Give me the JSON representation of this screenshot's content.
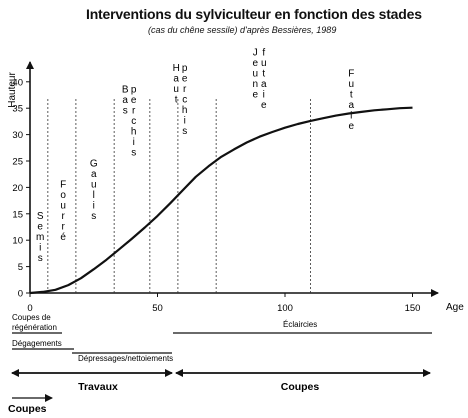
{
  "chart_data": {
    "type": "line",
    "title": "Interventions du sylviculteur en fonction des stades",
    "subtitle": "(cas du chêne sessile) d'après Bessières, 1989",
    "ylabel": "Hauteur",
    "xlabel": "Age",
    "xlim": [
      0,
      160
    ],
    "ylim": [
      0,
      45
    ],
    "xticks": [
      0,
      50,
      100,
      150
    ],
    "yticks": [
      0,
      5,
      10,
      15,
      20,
      25,
      30,
      35,
      40
    ],
    "series": [
      {
        "x": [
          0,
          5,
          10,
          15,
          20,
          25,
          30,
          35,
          40,
          45,
          50,
          55,
          60,
          65,
          70,
          75,
          80,
          85,
          90,
          95,
          100,
          105,
          110,
          115,
          120,
          125,
          130,
          135,
          140,
          145,
          150
        ],
        "values": [
          0,
          0.2,
          0.6,
          1.5,
          2.8,
          4.5,
          6.3,
          8.3,
          10.3,
          12.4,
          14.6,
          17,
          19.5,
          22,
          24,
          25.8,
          27.2,
          28.5,
          29.6,
          30.5,
          31.3,
          32,
          32.6,
          33.1,
          33.6,
          34,
          34.3,
          34.6,
          34.8,
          35,
          35.1
        ]
      }
    ],
    "stage_dividers": [
      7,
      18,
      33,
      47,
      58,
      73,
      110
    ],
    "stages": [
      {
        "label": "Semis",
        "x": 4,
        "y_top": 14
      },
      {
        "label": "Fourré",
        "x": 13,
        "y_top": 20
      },
      {
        "label": "Gaulis",
        "x": 25,
        "y_top": 24
      },
      {
        "label": "Bas perchis",
        "x": 39,
        "y_top": 38
      },
      {
        "label": "Haut perchis",
        "x": 59,
        "y_top": 42
      },
      {
        "label": "Jeune futaie",
        "x": 90,
        "y_top": 45
      },
      {
        "label": "Futaie",
        "x": 126,
        "y_top": 41
      }
    ],
    "interventions": [
      {
        "label": "Coupes de régénération",
        "x_from": 0,
        "x_to": 15
      },
      {
        "label": "Dégagements",
        "x_from": 0,
        "x_to": 17
      },
      {
        "label": "Dépressages/nettoiements",
        "x_from": 18,
        "x_to": 55
      },
      {
        "label": "Éclaircies",
        "x_from": 55,
        "x_to": 157
      }
    ],
    "phases": [
      {
        "label": "Travaux",
        "x_from": 0,
        "x_to": 57
      },
      {
        "label": "Coupes",
        "x_from": 57,
        "x_to": 157
      }
    ],
    "legend": {
      "label": "Coupes"
    }
  }
}
